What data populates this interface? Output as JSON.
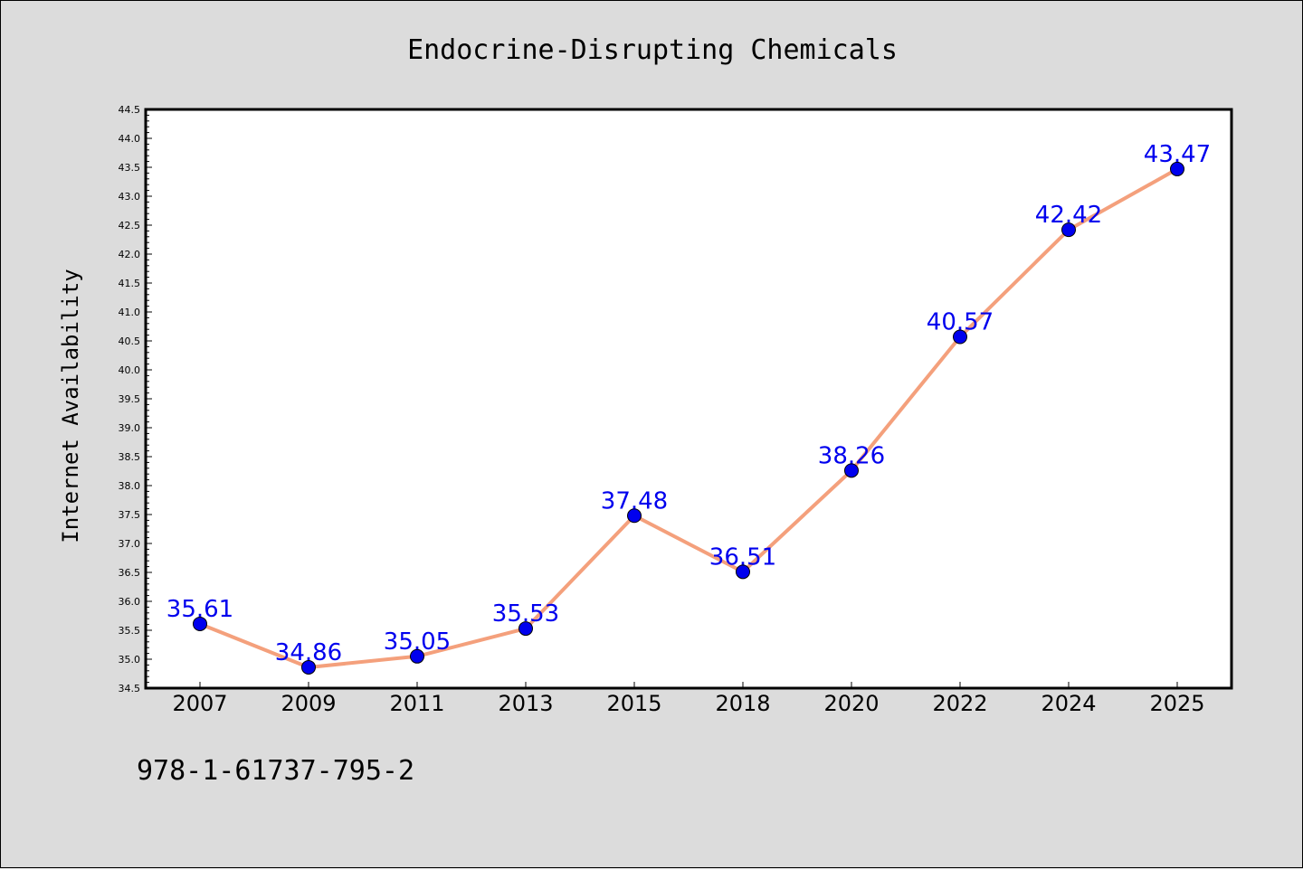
{
  "colors": {
    "background": "#dcdcdc",
    "plot_background": "#ffffff",
    "line": "#f4a07c",
    "marker": "#0000ee",
    "data_label": "#0000ee"
  },
  "footer_code": "978-1-61737-795-2",
  "chart_data": {
    "type": "line",
    "title": "Endocrine-Disrupting Chemicals",
    "xlabel": "",
    "ylabel": "Internet Availability",
    "categories": [
      "2007",
      "2009",
      "2011",
      "2013",
      "2015",
      "2018",
      "2020",
      "2022",
      "2024",
      "2025"
    ],
    "series": [
      {
        "values": [
          35.61,
          34.86,
          35.05,
          35.53,
          37.48,
          36.51,
          38.26,
          40.57,
          42.42,
          43.47
        ],
        "labels": [
          "35.61",
          "34.86",
          "35.05",
          "35.53",
          "37.48",
          "36.51",
          "38.26",
          "40.57",
          "42.42",
          "43.47"
        ]
      }
    ],
    "ylim": [
      34.5,
      44.5
    ],
    "yticks": [
      "34.5",
      "35.0",
      "35.5",
      "36.0",
      "36.5",
      "37.0",
      "37.5",
      "38.0",
      "38.5",
      "39.0",
      "39.5",
      "40.0",
      "40.5",
      "41.0",
      "41.5",
      "42.0",
      "42.5",
      "43.0",
      "43.5",
      "44.0",
      "44.5"
    ],
    "grid": false,
    "legend": "none"
  }
}
